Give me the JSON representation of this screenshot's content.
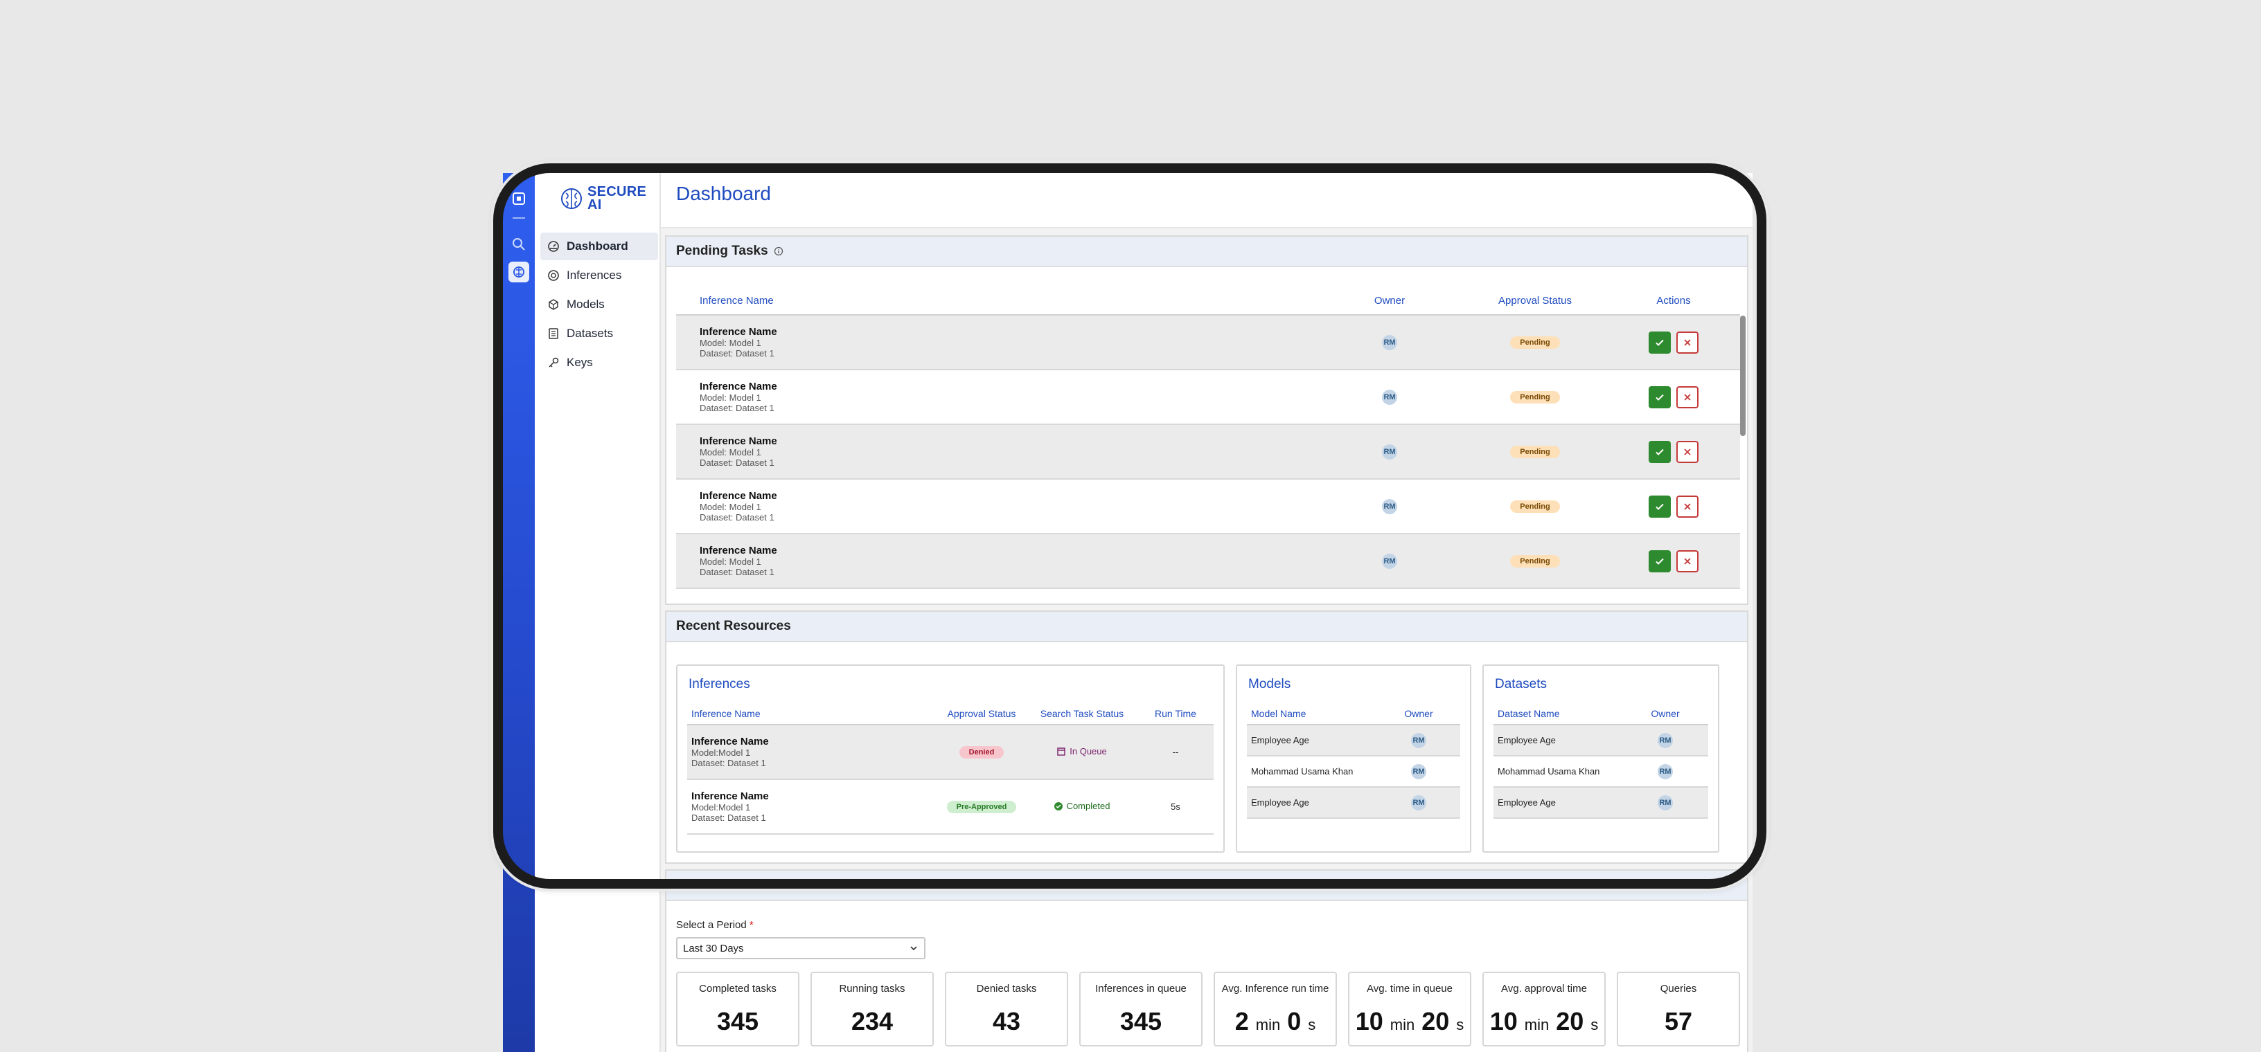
{
  "brand": {
    "name_line1": "SECURE",
    "name_line2": "AI"
  },
  "nav": {
    "items": [
      {
        "label": "Dashboard",
        "icon": "dashboard-icon",
        "active": true
      },
      {
        "label": "Inferences",
        "icon": "inference-icon"
      },
      {
        "label": "Models",
        "icon": "cube-icon"
      },
      {
        "label": "Datasets",
        "icon": "dataset-icon"
      },
      {
        "label": "Keys",
        "icon": "key-icon"
      }
    ]
  },
  "page": {
    "title": "Dashboard"
  },
  "pending": {
    "title": "Pending Tasks",
    "columns": {
      "name": "Inference Name",
      "owner": "Owner",
      "status": "Approval Status",
      "actions": "Actions"
    },
    "rows": [
      {
        "name": "Inference Name",
        "model": "Model: Model 1",
        "dataset": "Dataset: Dataset 1",
        "owner": "RM",
        "status": "Pending"
      },
      {
        "name": "Inference Name",
        "model": "Model: Model 1",
        "dataset": "Dataset: Dataset 1",
        "owner": "RM",
        "status": "Pending"
      },
      {
        "name": "Inference Name",
        "model": "Model: Model 1",
        "dataset": "Dataset: Dataset 1",
        "owner": "RM",
        "status": "Pending"
      },
      {
        "name": "Inference Name",
        "model": "Model: Model 1",
        "dataset": "Dataset: Dataset 1",
        "owner": "RM",
        "status": "Pending"
      },
      {
        "name": "Inference Name",
        "model": "Model: Model 1",
        "dataset": "Dataset: Dataset 1",
        "owner": "RM",
        "status": "Pending"
      }
    ]
  },
  "recent": {
    "title": "Recent Resources",
    "inferences": {
      "title": "Inferences",
      "columns": {
        "name": "Inference Name",
        "approval": "Approval Status",
        "search": "Search Task Status",
        "run": "Run Time"
      },
      "rows": [
        {
          "name": "Inference Name",
          "model": "Model:Model 1",
          "dataset": "Dataset: Dataset 1",
          "approval": "Denied",
          "search": "In Queue",
          "run": "--"
        },
        {
          "name": "Inference Name",
          "model": "Model:Model 1",
          "dataset": "Dataset: Dataset 1",
          "approval": "Pre-Approved",
          "search": "Completed",
          "run": "5s"
        }
      ]
    },
    "models": {
      "title": "Models",
      "columns": {
        "name": "Model Name",
        "owner": "Owner"
      },
      "rows": [
        {
          "name": "Employee Age",
          "owner": "RM"
        },
        {
          "name": "Mohammad Usama Khan",
          "owner": "RM"
        },
        {
          "name": "Employee Age",
          "owner": "RM"
        }
      ]
    },
    "datasets": {
      "title": "Datasets",
      "columns": {
        "name": "Dataset Name",
        "owner": "Owner"
      },
      "rows": [
        {
          "name": "Employee Age",
          "owner": "RM"
        },
        {
          "name": "Mohammad Usama Khan",
          "owner": "RM"
        },
        {
          "name": "Employee Age",
          "owner": "RM"
        }
      ]
    }
  },
  "activity": {
    "period_label": "Select a Period",
    "period_required": "*",
    "period_value": "Last 30 Days",
    "stats": [
      {
        "label": "Completed tasks",
        "value": "345"
      },
      {
        "label": "Running tasks",
        "value": "234"
      },
      {
        "label": "Denied tasks",
        "value": "43"
      },
      {
        "label": "Inferences in queue",
        "value": "345"
      },
      {
        "label": "Avg. Inference run time",
        "v1": "2",
        "u1": "min",
        "v2": "0",
        "u2": "s"
      },
      {
        "label": "Avg. time in queue",
        "v1": "10",
        "u1": "min",
        "v2": "20",
        "u2": "s"
      },
      {
        "label": "Avg. approval time",
        "v1": "10",
        "u1": "min",
        "v2": "20",
        "u2": "s"
      },
      {
        "label": "Queries",
        "value": "57"
      }
    ]
  },
  "colors": {
    "accent": "#1e4bbf",
    "rail": "#2f5ff0",
    "approve": "#2e8a2e",
    "deny": "#c63939"
  }
}
